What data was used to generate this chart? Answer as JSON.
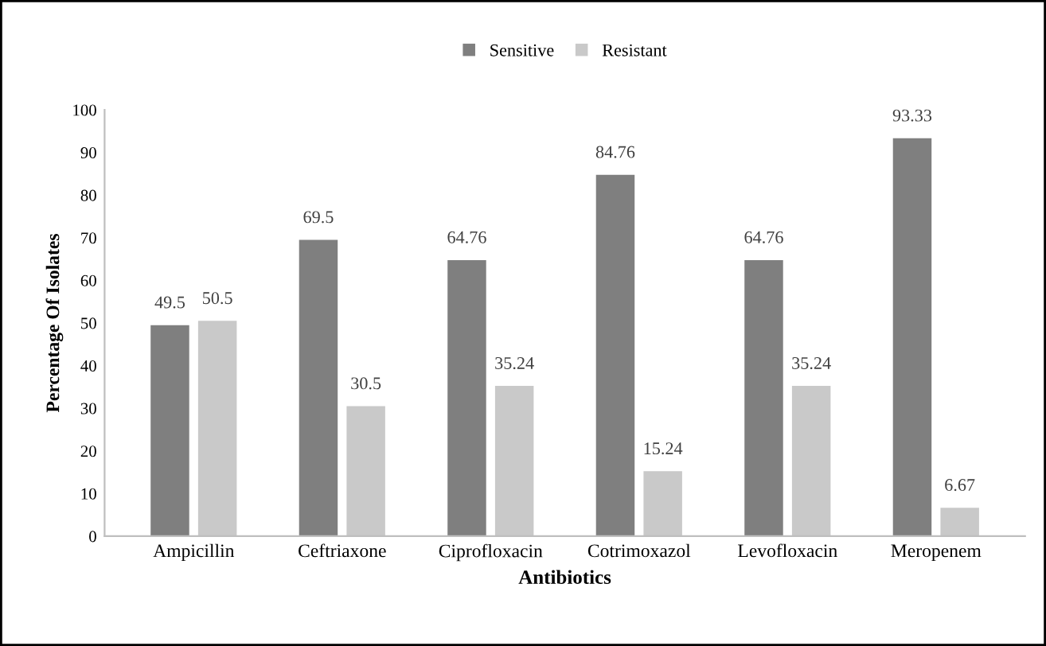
{
  "chart_data": {
    "type": "bar",
    "xlabel": "Antibiotics",
    "ylabel": "Percentage Of Isolates",
    "categories": [
      "Ampicillin",
      "Ceftriaxone",
      "Ciprofloxacin",
      "Cotrimoxazol",
      "Levofloxacin",
      "Meropenem"
    ],
    "series": [
      {
        "name": "Sensitive",
        "color": "#7f7f7f",
        "values": [
          49.5,
          69.5,
          64.76,
          84.76,
          64.76,
          93.33
        ]
      },
      {
        "name": "Resistant",
        "color": "#c9c9c9",
        "values": [
          50.5,
          30.5,
          35.24,
          15.24,
          35.24,
          6.67
        ]
      }
    ],
    "ylim": [
      0,
      100
    ],
    "yticks": [
      0,
      10,
      20,
      30,
      40,
      50,
      60,
      70,
      80,
      90,
      100
    ],
    "data_labels": true,
    "grid": false,
    "legend": "top"
  }
}
